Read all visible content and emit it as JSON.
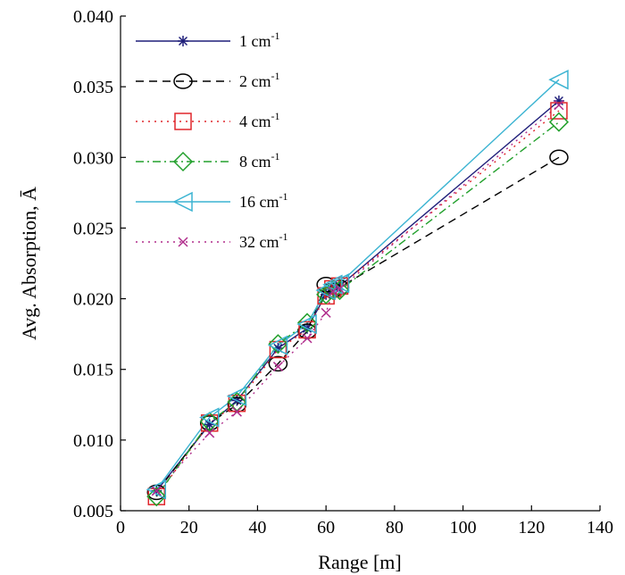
{
  "chart_data": {
    "type": "line",
    "title": "",
    "xlabel": "Range [m]",
    "ylabel": "Avg. Absorption, Ā",
    "xlim": [
      0,
      140
    ],
    "ylim": [
      0.005,
      0.04
    ],
    "x_ticks": [
      "0",
      "20",
      "40",
      "60",
      "80",
      "100",
      "120",
      "140"
    ],
    "y_ticks": [
      "0.005",
      "0.010",
      "0.015",
      "0.020",
      "0.025",
      "0.030",
      "0.035",
      "0.040"
    ],
    "grid": false,
    "legend_position": "top-left",
    "series": [
      {
        "name": "1 cm",
        "name_superscript": "-1",
        "color": "#1f1f7a",
        "dash": "solid",
        "marker": "asterisk",
        "x": [
          10.5,
          26,
          34,
          46,
          54.5,
          60,
          62,
          64,
          128
        ],
        "y": [
          0.0064,
          0.0111,
          0.0128,
          0.0165,
          0.0179,
          0.0203,
          0.0206,
          0.0209,
          0.034
        ]
      },
      {
        "name": "2 cm",
        "name_superscript": "-1",
        "color": "#000000",
        "dash": "dashed",
        "marker": "circle",
        "x": [
          10.5,
          26,
          34,
          46,
          54.5,
          60,
          62,
          64,
          128
        ],
        "y": [
          0.0063,
          0.0112,
          0.0125,
          0.0154,
          0.0177,
          0.021,
          0.0206,
          0.0208,
          0.03
        ]
      },
      {
        "name": "4 cm",
        "name_superscript": "-1",
        "color": "#e0262b",
        "dash": "dotted",
        "marker": "square",
        "x": [
          10.5,
          26,
          34,
          46,
          54.5,
          60,
          62,
          64,
          128
        ],
        "y": [
          0.006,
          0.0112,
          0.0126,
          0.0164,
          0.0178,
          0.0202,
          0.0207,
          0.0209,
          0.0333
        ]
      },
      {
        "name": "8 cm",
        "name_superscript": "-1",
        "color": "#22a02c",
        "dash": "dashdot",
        "marker": "diamond",
        "x": [
          10.5,
          26,
          34,
          46,
          54.5,
          60,
          62,
          64,
          128
        ],
        "y": [
          0.006,
          0.0113,
          0.0127,
          0.0168,
          0.0183,
          0.0203,
          0.0206,
          0.0206,
          0.0325
        ]
      },
      {
        "name": "16 cm",
        "name_superscript": "-1",
        "color": "#3cb4d2",
        "dash": "solid",
        "marker": "triangle-left",
        "x": [
          10.5,
          26,
          34,
          46,
          54.5,
          60,
          62,
          64,
          128
        ],
        "y": [
          0.0065,
          0.0116,
          0.0131,
          0.0167,
          0.0182,
          0.0206,
          0.021,
          0.0211,
          0.0355
        ]
      },
      {
        "name": "32 cm",
        "name_superscript": "-1",
        "color": "#b02d8c",
        "dash": "dotted",
        "marker": "x",
        "x": [
          10.5,
          26,
          34,
          46,
          54.5,
          60,
          62,
          64,
          128
        ],
        "y": [
          0.0064,
          0.0105,
          0.012,
          0.0152,
          0.0172,
          0.019,
          0.0205,
          0.0207,
          0.0337
        ]
      }
    ]
  }
}
